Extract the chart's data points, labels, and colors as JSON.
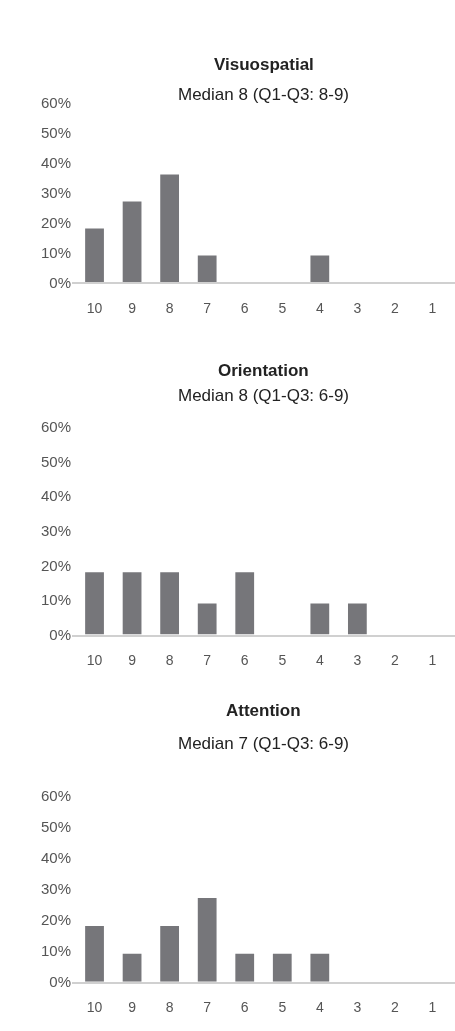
{
  "chart_data": [
    {
      "type": "bar",
      "title": "Visuospatial",
      "subtitle": "Median 8 (Q1-Q3: 8-9)",
      "categories": [
        "10",
        "9",
        "8",
        "7",
        "6",
        "5",
        "4",
        "3",
        "2",
        "1"
      ],
      "values": [
        18,
        27,
        36,
        9,
        0,
        0,
        9,
        0,
        0,
        0
      ],
      "color": "#76767a",
      "ylim": [
        0,
        60
      ],
      "yticks": [
        {
          "value": 0,
          "label": "0%"
        },
        {
          "value": 10,
          "label": "10%"
        },
        {
          "value": 20,
          "label": "20%"
        },
        {
          "value": 30,
          "label": "30%"
        },
        {
          "value": 40,
          "label": "40%"
        },
        {
          "value": 50,
          "label": "50%"
        },
        {
          "value": 60,
          "label": "60%"
        }
      ],
      "grid": false
    },
    {
      "type": "bar",
      "title": "Orientation",
      "subtitle": "Median 8 (Q1-Q3: 6-9)",
      "categories": [
        "10",
        "9",
        "8",
        "7",
        "6",
        "5",
        "4",
        "3",
        "2",
        "1"
      ],
      "values": [
        18,
        18,
        18,
        9,
        18,
        0,
        9,
        9,
        0,
        0
      ],
      "color": "#76767a",
      "ylim": [
        0,
        60
      ],
      "yticks": [
        {
          "value": 0,
          "label": "0%"
        },
        {
          "value": 10,
          "label": "10%"
        },
        {
          "value": 20,
          "label": "20%"
        },
        {
          "value": 30,
          "label": "30%"
        },
        {
          "value": 40,
          "label": "40%"
        },
        {
          "value": 50,
          "label": "50%"
        },
        {
          "value": 60,
          "label": "60%"
        }
      ],
      "grid": false
    },
    {
      "type": "bar",
      "title": "Attention",
      "subtitle": "Median 7 (Q1-Q3: 6-9)",
      "categories": [
        "10",
        "9",
        "8",
        "7",
        "6",
        "5",
        "4",
        "3",
        "2",
        "1"
      ],
      "values": [
        18,
        9,
        18,
        27,
        9,
        9,
        9,
        0,
        0,
        0
      ],
      "color": "#76767a",
      "ylim": [
        0,
        60
      ],
      "yticks": [
        {
          "value": 0,
          "label": "0%"
        },
        {
          "value": 10,
          "label": "10%"
        },
        {
          "value": 20,
          "label": "20%"
        },
        {
          "value": 30,
          "label": "30%"
        },
        {
          "value": 40,
          "label": "40%"
        },
        {
          "value": 50,
          "label": "50%"
        },
        {
          "value": 60,
          "label": "60%"
        }
      ],
      "grid": false
    }
  ]
}
